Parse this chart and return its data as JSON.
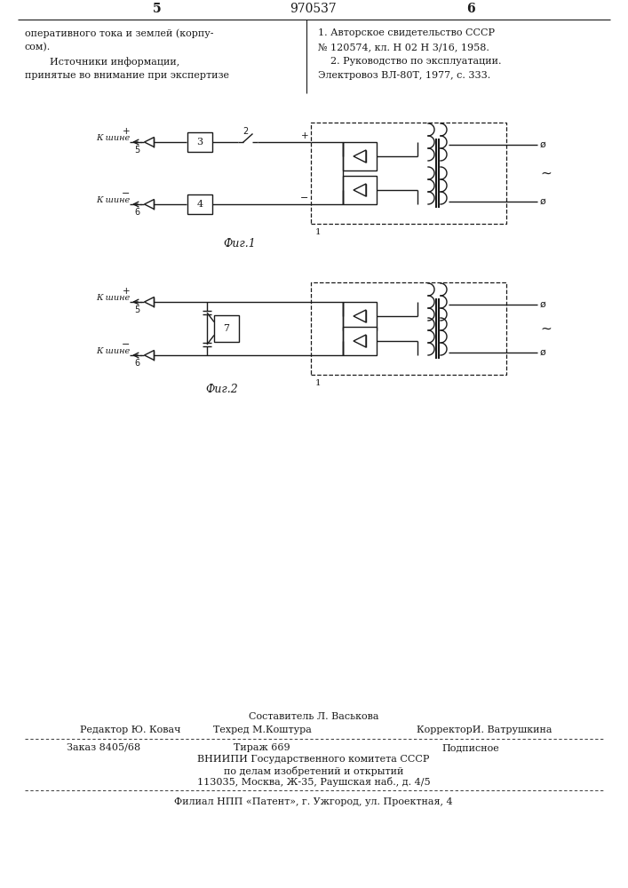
{
  "page_number_left": "5",
  "page_number_center": "970537",
  "page_number_right": "6",
  "text_left_col": [
    "оперативного тока и землей (корпу-",
    "сом).",
    "        Источники информации,",
    "принятые во внимание при экспертизе"
  ],
  "text_right_col": [
    "1. Авторское свидетельство СССР",
    "№ 120574, кл. Н 02 Н 3/16, 1958.",
    "    2. Руководство по эксплуатации.",
    "Электровоз ВЛ-80Т, 1977, с. 333."
  ],
  "fig1_caption": "Фиг.1",
  "fig2_caption": "Фиг.2",
  "footer_composer": "Составитель Л. Васькова",
  "footer_editor": "Редактор Ю. Ковач",
  "footer_tech": "Техред М.Коштура",
  "footer_corrector": "КорректорИ. Ватрушкина",
  "footer_order": "Заказ 8405/68",
  "footer_tirazh": "Тираж 669",
  "footer_podp": "Подписное",
  "footer_vniip": "ВНИИПИ Государственного комитета СССР",
  "footer_dela": "по делам изобретений и открытий",
  "footer_addr": "113035, Москва, Ж-35, Раушская наб., д. 4/5",
  "footer_filial": "Филиал НПП «Патент», г. Ужгород, ул. Проектная, 4",
  "bg_color": "#ffffff",
  "line_color": "#1a1a1a"
}
